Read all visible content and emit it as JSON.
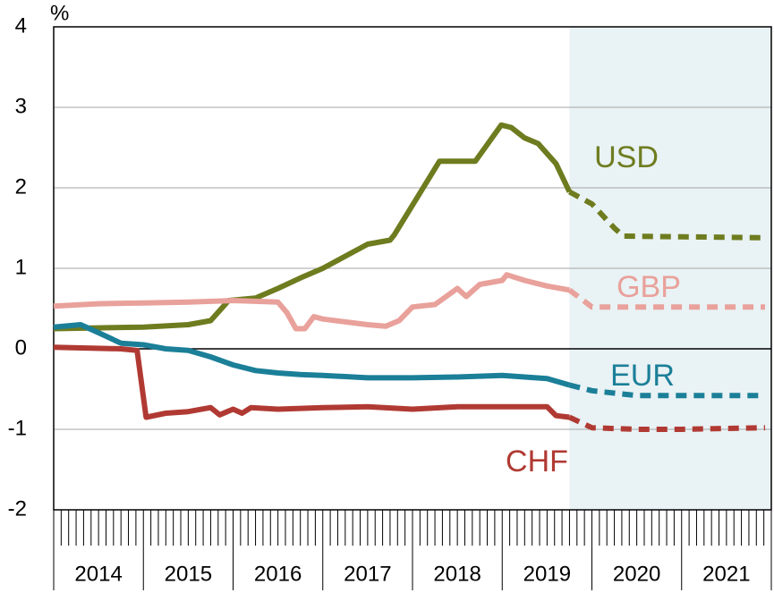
{
  "chart_data": {
    "type": "line",
    "y_label": "%",
    "categories": [
      "2014",
      "2015",
      "2016",
      "2017",
      "2018",
      "2019",
      "2020",
      "2021"
    ],
    "xlim": [
      2014,
      2022
    ],
    "ylim": [
      -2,
      4
    ],
    "yticks": [
      -2,
      -1,
      0,
      1,
      2,
      3,
      4
    ],
    "grid": true,
    "forecast_start": 2019.75,
    "forecast_shade": "#e9f2f4",
    "series": [
      {
        "name": "USD",
        "color": "#6e7c1f",
        "x": [
          2014,
          2015,
          2015.5,
          2015.75,
          2015.95,
          2016.25,
          2016.5,
          2016.75,
          2017,
          2017.25,
          2017.5,
          2017.75,
          2017.8,
          2018.3,
          2018.7,
          2018.99,
          2019.1,
          2019.25,
          2019.4,
          2019.6,
          2019.75,
          2020,
          2020.25,
          2020.35,
          2021.93
        ],
        "values": [
          0.25,
          0.27,
          0.3,
          0.35,
          0.6,
          0.63,
          0.75,
          0.88,
          1.0,
          1.15,
          1.3,
          1.35,
          1.42,
          2.33,
          2.33,
          2.78,
          2.75,
          2.62,
          2.55,
          2.3,
          1.95,
          1.8,
          1.5,
          1.4,
          1.38
        ]
      },
      {
        "name": "GBP",
        "color": "#e9a19b",
        "x": [
          2014,
          2014.5,
          2015,
          2015.5,
          2016,
          2016.5,
          2016.6,
          2016.7,
          2016.8,
          2016.9,
          2017,
          2017.5,
          2017.7,
          2017.85,
          2018,
          2018.25,
          2018.5,
          2018.6,
          2018.75,
          2019,
          2019.05,
          2019.25,
          2019.5,
          2019.75,
          2020,
          2021.93
        ],
        "values": [
          0.53,
          0.56,
          0.57,
          0.58,
          0.6,
          0.58,
          0.45,
          0.25,
          0.25,
          0.4,
          0.37,
          0.3,
          0.28,
          0.35,
          0.52,
          0.55,
          0.75,
          0.65,
          0.8,
          0.85,
          0.92,
          0.85,
          0.78,
          0.73,
          0.52,
          0.52
        ]
      },
      {
        "name": "EUR",
        "color": "#1b7f98",
        "x": [
          2014,
          2014.3,
          2014.5,
          2014.75,
          2015,
          2015.25,
          2015.5,
          2015.75,
          2016,
          2016.25,
          2016.5,
          2016.75,
          2017,
          2017.5,
          2018,
          2018.5,
          2019,
          2019.5,
          2019.75,
          2020,
          2020.5,
          2021.93
        ],
        "values": [
          0.27,
          0.3,
          0.2,
          0.07,
          0.05,
          0.0,
          -0.02,
          -0.1,
          -0.2,
          -0.27,
          -0.3,
          -0.32,
          -0.33,
          -0.36,
          -0.36,
          -0.35,
          -0.33,
          -0.37,
          -0.45,
          -0.52,
          -0.58,
          -0.58
        ]
      },
      {
        "name": "CHF",
        "color": "#b03a33",
        "x": [
          2014,
          2014.75,
          2014.93,
          2015.03,
          2015.25,
          2015.5,
          2015.75,
          2015.85,
          2016,
          2016.1,
          2016.2,
          2016.5,
          2017,
          2017.5,
          2018,
          2018.5,
          2019,
          2019.5,
          2019.6,
          2019.75,
          2020,
          2020.5,
          2021,
          2021.93
        ],
        "values": [
          0.02,
          0.0,
          -0.02,
          -0.85,
          -0.8,
          -0.78,
          -0.73,
          -0.82,
          -0.75,
          -0.8,
          -0.73,
          -0.75,
          -0.73,
          -0.72,
          -0.75,
          -0.72,
          -0.72,
          -0.72,
          -0.83,
          -0.85,
          -0.98,
          -1.0,
          -1.0,
          -0.98
        ]
      }
    ]
  }
}
